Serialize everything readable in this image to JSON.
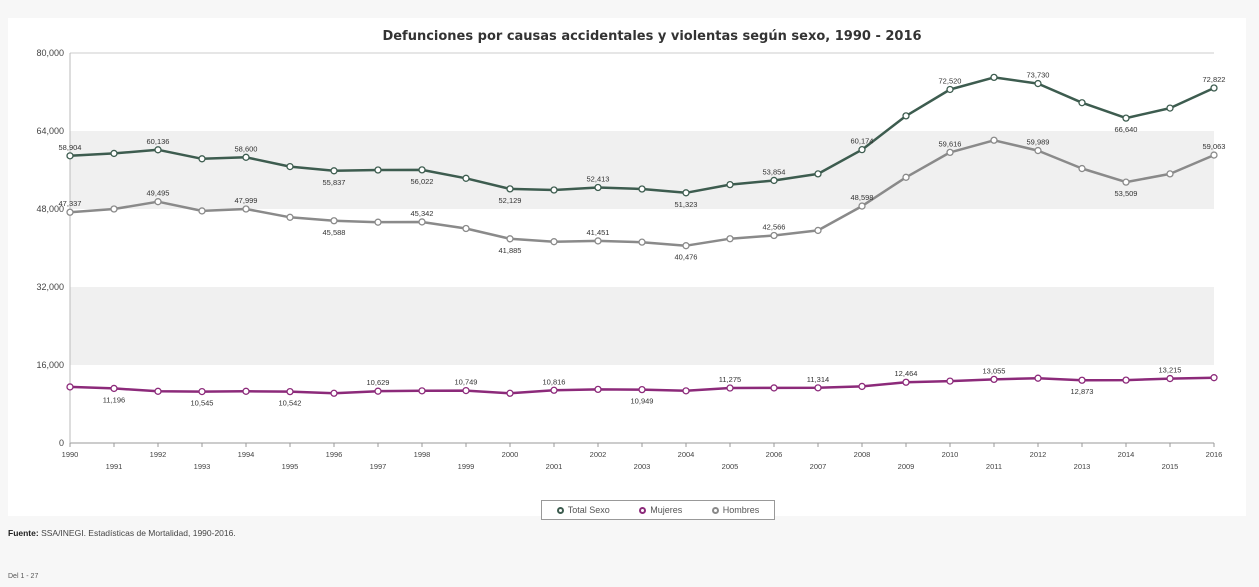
{
  "chart_data": {
    "type": "line",
    "title": "Defunciones por causas accidentales y violentas según sexo, 1990 - 2016",
    "xlabel": "",
    "ylabel": "",
    "x": [
      "1990",
      "1991",
      "1992",
      "1993",
      "1994",
      "1995",
      "1996",
      "1997",
      "1998",
      "1999",
      "2000",
      "2001",
      "2002",
      "2003",
      "2004",
      "2005",
      "2006",
      "2007",
      "2008",
      "2009",
      "2010",
      "2011",
      "2012",
      "2013",
      "2014",
      "2015",
      "2016"
    ],
    "ylim": [
      0,
      80000
    ],
    "yticks": [
      "0",
      "16,000",
      "32,000",
      "48,000",
      "64,000",
      "80,000"
    ],
    "ytick_values": [
      0,
      16000,
      32000,
      48000,
      64000,
      80000
    ],
    "grid": "alternating horizontal bands",
    "legend_position": "bottom-center",
    "series": [
      {
        "name": "Total Sexo",
        "color": "#3d5c4f",
        "values": [
          58904,
          59400,
          60136,
          58300,
          58600,
          56700,
          55837,
          56000,
          56022,
          54300,
          52129,
          51900,
          52413,
          52100,
          51323,
          53000,
          53854,
          55200,
          60174,
          67100,
          72520,
          75000,
          73730,
          69800,
          66640,
          68700,
          72822
        ],
        "labels": {
          "0": "58,904",
          "2": "60,136",
          "4": "58,600",
          "6": "55,837",
          "8": "56,022",
          "10": "52,129",
          "12": "52,413",
          "14": "51,323",
          "16": "53,854",
          "18": "60,174",
          "20": "72,520",
          "22": "73,730",
          "24": "66,640",
          "26": "72,822"
        }
      },
      {
        "name": "Hombres",
        "color": "#8a8a8a",
        "values": [
          47337,
          48000,
          49495,
          47600,
          47999,
          46300,
          45588,
          45300,
          45342,
          44000,
          41885,
          41300,
          41451,
          41200,
          40476,
          41900,
          42566,
          43600,
          48598,
          54500,
          59616,
          62100,
          59989,
          56300,
          53509,
          55200,
          59063
        ],
        "labels": {
          "0": "47,337",
          "2": "49,495",
          "4": "47,999",
          "6": "45,588",
          "8": "45,342",
          "10": "41,885",
          "12": "41,451",
          "14": "40,476",
          "16": "42,566",
          "18": "48,598",
          "20": "59,616",
          "22": "59,989",
          "24": "53,509",
          "26": "59,063"
        }
      },
      {
        "name": "Mujeres",
        "color": "#8c2a7a",
        "values": [
          11500,
          11196,
          10600,
          10545,
          10600,
          10542,
          10200,
          10629,
          10700,
          10749,
          10200,
          10816,
          11000,
          10949,
          10700,
          11275,
          11300,
          11314,
          11600,
          12464,
          12700,
          13055,
          13300,
          12873,
          12900,
          13215,
          13400
        ],
        "labels": {
          "1": "11,196",
          "3": "10,545",
          "5": "10,542",
          "7": "10,629",
          "9": "10,749",
          "11": "10,816",
          "13": "10,949",
          "15": "11,275",
          "17": "11,314",
          "19": "12,464",
          "21": "13,055",
          "23": "12,873",
          "25": "13,215"
        }
      }
    ]
  },
  "legend": {
    "total": "Total Sexo",
    "mujeres": "Mujeres",
    "hombres": "Hombres"
  },
  "footer": {
    "source_label": "Fuente:",
    "source_text": " SSA/INEGI. Estadísticas de Mortalidad, 1990-2016.",
    "pager": "Del 1 - 27"
  }
}
